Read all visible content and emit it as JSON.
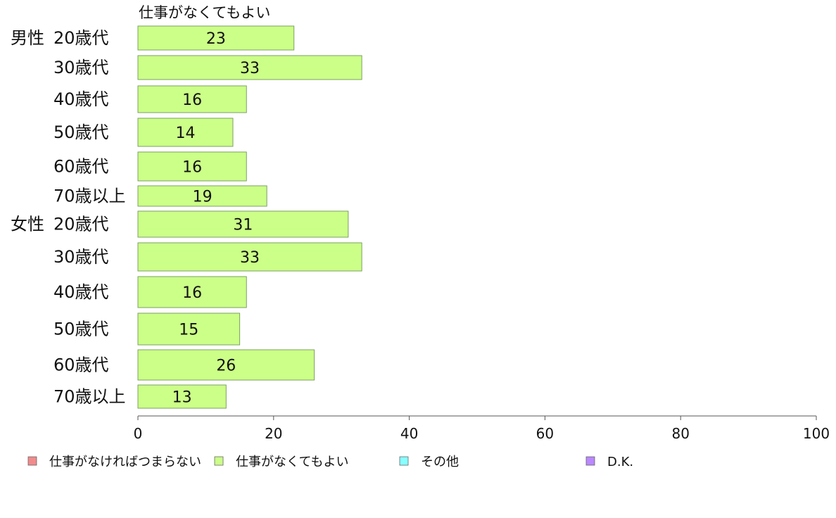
{
  "chart_data": {
    "type": "bar",
    "orientation": "horizontal",
    "series_title": "仕事がなくてもよい",
    "groups": [
      {
        "label": "男性",
        "rows": [
          {
            "label": "20歳代",
            "value": 23
          },
          {
            "label": "30歳代",
            "value": 33
          },
          {
            "label": "40歳代",
            "value": 16
          },
          {
            "label": "50歳代",
            "value": 14
          },
          {
            "label": "60歳代",
            "value": 16
          },
          {
            "label": "70歳以上",
            "value": 19
          }
        ]
      },
      {
        "label": "女性",
        "rows": [
          {
            "label": "20歳代",
            "value": 31
          },
          {
            "label": "30歳代",
            "value": 33
          },
          {
            "label": "40歳代",
            "value": 16
          },
          {
            "label": "50歳代",
            "value": 15
          },
          {
            "label": "60歳代",
            "value": 26
          },
          {
            "label": "70歳以上",
            "value": 13
          }
        ]
      }
    ],
    "xlim": [
      0,
      100
    ],
    "xticks": [
      0,
      20,
      40,
      60,
      80,
      100
    ],
    "grid": false,
    "legend_position": "bottom",
    "legend": [
      {
        "label": "仕事がなければつまらない",
        "color": "#f28b8b"
      },
      {
        "label": "仕事がなくてもよい",
        "color": "#ccff88"
      },
      {
        "label": "その他",
        "color": "#88ffff"
      },
      {
        "label": "D.K.",
        "color": "#bb88ff"
      }
    ],
    "bar_color": "#ccff88",
    "bar_stroke": "#7aa060"
  }
}
